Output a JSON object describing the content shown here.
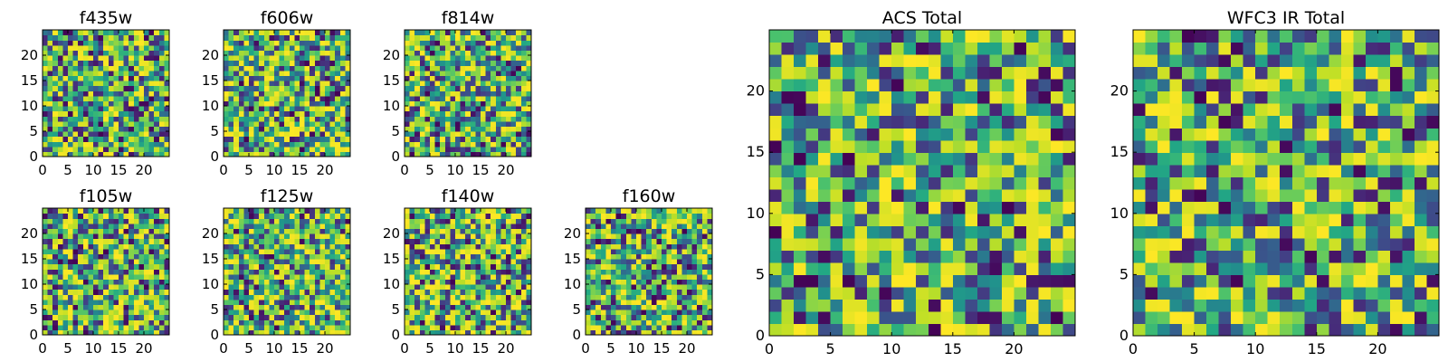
{
  "chart_data": [
    {
      "type": "heatmap",
      "title": "f435w",
      "xlim": [
        0,
        25
      ],
      "ylim": [
        0,
        25
      ],
      "xticks": [
        0,
        5,
        10,
        15,
        20
      ],
      "yticks": [
        0,
        5,
        10,
        15,
        20
      ],
      "grid": false,
      "colormap": "viridis",
      "nx": 25,
      "ny": 25,
      "seed": 11
    },
    {
      "type": "heatmap",
      "title": "f606w",
      "xlim": [
        0,
        25
      ],
      "ylim": [
        0,
        25
      ],
      "xticks": [
        0,
        5,
        10,
        15,
        20
      ],
      "yticks": [
        0,
        5,
        10,
        15,
        20
      ],
      "grid": false,
      "colormap": "viridis",
      "nx": 25,
      "ny": 25,
      "seed": 23
    },
    {
      "type": "heatmap",
      "title": "f814w",
      "xlim": [
        0,
        25
      ],
      "ylim": [
        0,
        25
      ],
      "xticks": [
        0,
        5,
        10,
        15,
        20
      ],
      "yticks": [
        0,
        5,
        10,
        15,
        20
      ],
      "grid": false,
      "colormap": "viridis",
      "nx": 25,
      "ny": 25,
      "seed": 37
    },
    {
      "type": "heatmap",
      "title": "f105w",
      "xlim": [
        0,
        25
      ],
      "ylim": [
        0,
        25
      ],
      "xticks": [
        0,
        5,
        10,
        15,
        20
      ],
      "yticks": [
        0,
        5,
        10,
        15,
        20
      ],
      "grid": false,
      "colormap": "viridis",
      "nx": 25,
      "ny": 25,
      "seed": 41
    },
    {
      "type": "heatmap",
      "title": "f125w",
      "xlim": [
        0,
        25
      ],
      "ylim": [
        0,
        25
      ],
      "xticks": [
        0,
        5,
        10,
        15,
        20
      ],
      "yticks": [
        0,
        5,
        10,
        15,
        20
      ],
      "grid": false,
      "colormap": "viridis",
      "nx": 25,
      "ny": 25,
      "seed": 53
    },
    {
      "type": "heatmap",
      "title": "f140w",
      "xlim": [
        0,
        25
      ],
      "ylim": [
        0,
        25
      ],
      "xticks": [
        0,
        5,
        10,
        15,
        20
      ],
      "yticks": [
        0,
        5,
        10,
        15,
        20
      ],
      "grid": false,
      "colormap": "viridis",
      "nx": 25,
      "ny": 25,
      "seed": 67
    },
    {
      "type": "heatmap",
      "title": "f160w",
      "xlim": [
        0,
        25
      ],
      "ylim": [
        0,
        25
      ],
      "xticks": [
        0,
        5,
        10,
        15,
        20
      ],
      "yticks": [
        0,
        5,
        10,
        15,
        20
      ],
      "grid": false,
      "colormap": "viridis",
      "nx": 25,
      "ny": 25,
      "seed": 79
    },
    {
      "type": "heatmap",
      "title": "ACS Total",
      "xlim": [
        0,
        25
      ],
      "ylim": [
        0,
        25
      ],
      "xticks": [
        0,
        5,
        10,
        15,
        20
      ],
      "yticks": [
        0,
        5,
        10,
        15,
        20
      ],
      "grid": false,
      "colormap": "viridis",
      "nx": 25,
      "ny": 25,
      "seed": 97
    },
    {
      "type": "heatmap",
      "title": "WFC3 IR Total",
      "xlim": [
        0,
        25
      ],
      "ylim": [
        0,
        25
      ],
      "xticks": [
        0,
        5,
        10,
        15,
        20
      ],
      "yticks": [
        0,
        5,
        10,
        15,
        20
      ],
      "grid": false,
      "colormap": "viridis",
      "nx": 25,
      "ny": 25,
      "seed": 131
    }
  ]
}
